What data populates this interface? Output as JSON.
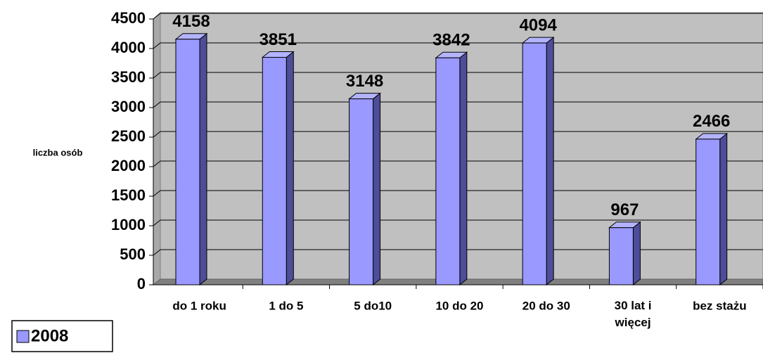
{
  "chart_data": {
    "type": "bar3d",
    "y_label": "liczba osób",
    "categories": [
      "do 1 roku",
      "1 do 5",
      "5 do10",
      "10 do 20",
      "20 do 30",
      "30 lat i\nwięcej",
      "bez stażu"
    ],
    "series": [
      {
        "name": "2008",
        "color": "#9999ff",
        "values": [
          4158,
          3851,
          3148,
          3842,
          4094,
          967,
          2466
        ]
      }
    ],
    "ylim": [
      0,
      4500
    ],
    "yticks": [
      0,
      500,
      1000,
      1500,
      2000,
      2500,
      3000,
      3500,
      4000,
      4500
    ],
    "grid": true,
    "legend": "bottom-left"
  }
}
